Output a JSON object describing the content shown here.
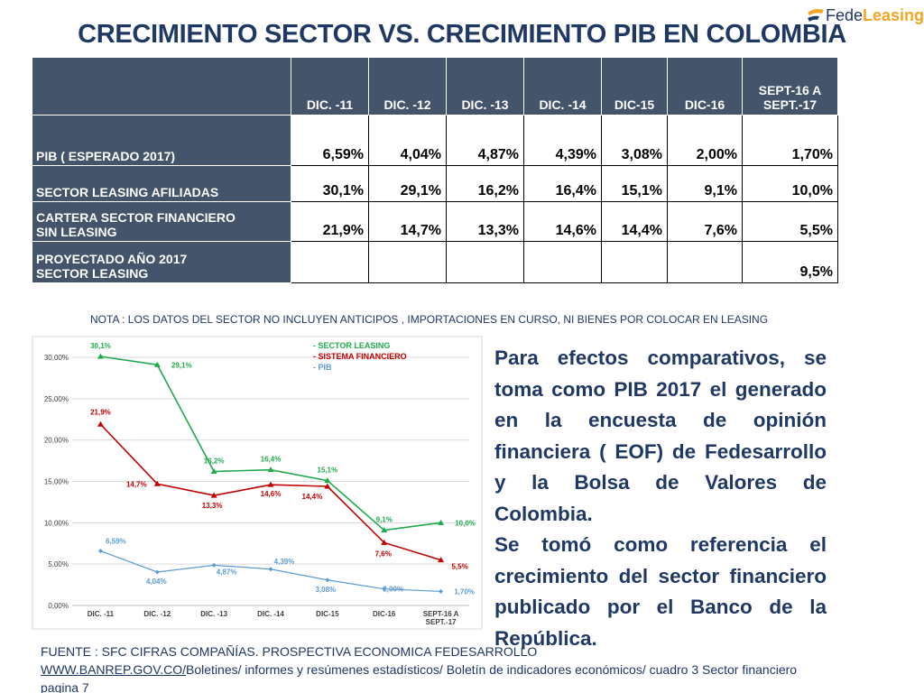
{
  "title": "CRECIMIENTO SECTOR VS. CRECIMIENTO PIB EN COLOMBIA",
  "logo": {
    "part1": "Fede",
    "part2": "Leasing"
  },
  "table": {
    "headers": [
      "DIC. -11",
      "DIC. -12",
      "DIC. -13",
      "DIC. -14",
      "DIC-15",
      "DIC-16",
      "SEPT-16  A",
      "SEPT.-17"
    ],
    "rows": [
      {
        "label1": "PIB ( ESPERADO 2017)",
        "label2": "",
        "values": [
          "6,59%",
          "4,04%",
          "4,87%",
          "4,39%",
          "3,08%",
          "2,00%",
          "1,70%"
        ]
      },
      {
        "label1": "SECTOR LEASING AFILIADAS",
        "label2": "",
        "values": [
          "30,1%",
          "29,1%",
          "16,2%",
          "16,4%",
          "15,1%",
          "9,1%",
          "10,0%"
        ]
      },
      {
        "label1": "CARTERA SECTOR FINANCIERO",
        "label2": "SIN LEASING",
        "values": [
          "21,9%",
          "14,7%",
          "13,3%",
          "14,6%",
          "14,4%",
          "7,6%",
          "5,5%"
        ]
      },
      {
        "label1": "PROYECTADO AÑO 2017",
        "label2": "SECTOR LEASING",
        "values": [
          "",
          "",
          "",
          "",
          "",
          "",
          "9,5%"
        ]
      }
    ]
  },
  "note": "NOTA : LOS DATOS DEL SECTOR NO INCLUYEN ANTICIPOS , IMPORTACIONES EN CURSO, NI BIENES POR COLOCAR EN LEASING",
  "chart_data": {
    "type": "line",
    "categories": [
      "DIC. -11",
      "DIC. -12",
      "DIC. -13",
      "DIC. -14",
      "DIC-15",
      "DIC-16",
      "SEPT-16  A|SEPT.-17"
    ],
    "ylim": [
      0,
      30
    ],
    "yticks": [
      "0,00%",
      "5,00%",
      "10,00%",
      "15,00%",
      "20,00%",
      "25,00%",
      "30,00%"
    ],
    "ytick_values": [
      0,
      5,
      10,
      15,
      20,
      25,
      30
    ],
    "grid": true,
    "legend": "top-center",
    "series": [
      {
        "name": "- SECTOR LEASING",
        "color": "#1faa4b",
        "marker": "triangle",
        "values": [
          30.1,
          29.1,
          16.2,
          16.4,
          15.1,
          9.1,
          10.0
        ],
        "labels": [
          "30,1%",
          "29,1%",
          "16,2%",
          "16,4%",
          "15,1%",
          "9,1%",
          "10,0%"
        ]
      },
      {
        "name": "- SISTEMA FINANCIERO",
        "color": "#c00000",
        "marker": "triangle",
        "values": [
          21.9,
          14.7,
          13.3,
          14.6,
          14.4,
          7.6,
          5.5
        ],
        "labels": [
          "21,9%",
          "14,7%",
          "13,3%",
          "14,6%",
          "14,4%",
          "7,6%",
          "5,5%"
        ]
      },
      {
        "name": "- PIB",
        "color": "#5b9bd5",
        "marker": "diamond",
        "values": [
          6.59,
          4.04,
          4.87,
          4.39,
          3.08,
          2.0,
          1.7
        ],
        "labels": [
          "6,59%",
          "4,04%",
          "4,87%",
          "4,39%",
          "3,08%",
          "2,00%",
          "1,70%"
        ]
      }
    ]
  },
  "paragraph": {
    "p1": "Para efectos comparativos, se toma como PIB 2017 el generado en la encuesta de opinión financiera ( EOF) de Fedesarrollo y la Bolsa de Valores de Colombia.",
    "p2": "Se tomó como referencia el crecimiento del sector financiero publicado por el Banco de la República."
  },
  "source": {
    "line1": "FUENTE : SFC CIFRAS COMPAÑÍAS. PROSPECTIVA ECONOMICA FEDESARROLLO",
    "link": "WWW.BANREP.GOV.CO/",
    "line2_rest": "Boletines/ informes y resúmenes estadísticos/ Boletín de indicadores económicos/ cuadro 3 Sector financiero",
    "line3": "pagina 7"
  }
}
